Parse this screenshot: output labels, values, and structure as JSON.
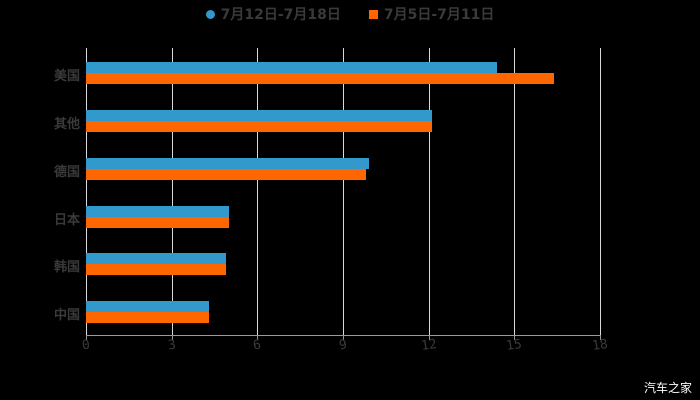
{
  "chart_data": {
    "type": "bar",
    "orientation": "horizontal",
    "title": "",
    "xlabel": "",
    "ylabel": "",
    "categories": [
      "美国",
      "其他",
      "德国",
      "日本",
      "韩国",
      "中国"
    ],
    "series": [
      {
        "name": "7月12日-7月18日",
        "color": "#3399cc",
        "values": [
          14.4,
          12.1,
          9.9,
          5.0,
          4.9,
          4.3
        ]
      },
      {
        "name": "7月5日-7月11日",
        "color": "#ff6600",
        "values": [
          16.4,
          12.1,
          9.8,
          5.0,
          4.9,
          4.3
        ]
      }
    ],
    "xlim": [
      0,
      18
    ],
    "xticks": [
      "0",
      "3",
      "6",
      "9",
      "12",
      "15",
      "18"
    ],
    "grid": true,
    "legend_position": "top"
  },
  "legend": {
    "items": [
      {
        "label": "7月12日-7月18日",
        "color": "#3399cc",
        "marker": "circle"
      },
      {
        "label": "7月5日-7月11日",
        "color": "#ff6600",
        "marker": "square"
      }
    ]
  },
  "watermark": "汽车之家"
}
